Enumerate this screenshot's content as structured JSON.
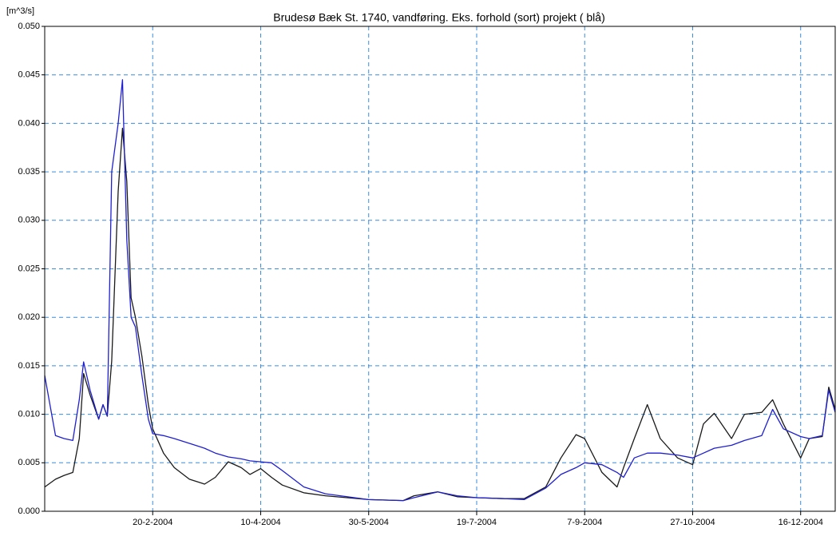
{
  "chart_data": {
    "type": "line",
    "title": "Brudesø Bæk St. 1740, vandføring. Eks. forhold (sort) projekt ( blå)",
    "y_label": "[m^3/s]",
    "x": [
      "1-1-2004",
      "6-1-2004",
      "10-1-2004",
      "14-1-2004",
      "17-1-2004",
      "19-1-2004",
      "22-1-2004",
      "26-1-2004",
      "28-1-2004",
      "30-1-2004",
      "1-2-2004",
      "4-2-2004",
      "6-2-2004",
      "8-2-2004",
      "10-2-2004",
      "12-2-2004",
      "15-2-2004",
      "18-2-2004",
      "20-2-2004",
      "25-2-2004",
      "1-3-2004",
      "8-3-2004",
      "15-3-2004",
      "20-3-2004",
      "26-3-2004",
      "1-4-2004",
      "5-4-2004",
      "10-4-2004",
      "15-4-2004",
      "20-4-2004",
      "30-4-2004",
      "10-5-2004",
      "30-5-2004",
      "15-6-2004",
      "20-6-2004",
      "1-7-2004",
      "10-7-2004",
      "19-7-2004",
      "1-8-2004",
      "10-8-2004",
      "20-8-2004",
      "27-8-2004",
      "3-9-2004",
      "7-9-2004",
      "15-9-2004",
      "22-9-2004",
      "25-9-2004",
      "30-9-2004",
      "6-10-2004",
      "12-10-2004",
      "20-10-2004",
      "27-10-2004",
      "1-11-2004",
      "6-11-2004",
      "14-11-2004",
      "20-11-2004",
      "28-11-2004",
      "3-12-2004",
      "8-12-2004",
      "16-12-2004",
      "20-12-2004",
      "26-12-2004",
      "29-12-2004",
      "1-1-2005"
    ],
    "series": [
      {
        "color": "#1a1a1a",
        "values": [
          0.0025,
          0.0033,
          0.0037,
          0.004,
          0.0075,
          0.0142,
          0.012,
          0.0095,
          0.011,
          0.0098,
          0.0155,
          0.033,
          0.0395,
          0.034,
          0.022,
          0.02,
          0.016,
          0.011,
          0.0085,
          0.006,
          0.0045,
          0.0033,
          0.0028,
          0.0035,
          0.0051,
          0.0045,
          0.0038,
          0.0044,
          0.0035,
          0.0027,
          0.0019,
          0.0016,
          0.0012,
          0.0011,
          0.0016,
          0.002,
          0.0015,
          0.0014,
          0.0013,
          0.0013,
          0.0025,
          0.0055,
          0.0079,
          0.0075,
          0.004,
          0.0025,
          0.0045,
          0.0075,
          0.011,
          0.0075,
          0.0055,
          0.0048,
          0.009,
          0.0101,
          0.0075,
          0.01,
          0.0102,
          0.0115,
          0.009,
          0.0055,
          0.0075,
          0.0077,
          0.0128,
          0.0105
        ]
      },
      {
        "color": "#1f1fd0",
        "values": [
          0.014,
          0.0078,
          0.0075,
          0.0073,
          0.0115,
          0.0154,
          0.0125,
          0.0095,
          0.011,
          0.0098,
          0.035,
          0.04,
          0.0445,
          0.028,
          0.02,
          0.019,
          0.014,
          0.0095,
          0.008,
          0.0078,
          0.0075,
          0.007,
          0.0065,
          0.006,
          0.0056,
          0.0054,
          0.0052,
          0.0051,
          0.005,
          0.0042,
          0.0025,
          0.0018,
          0.0012,
          0.0011,
          0.0014,
          0.002,
          0.0016,
          0.0014,
          0.0013,
          0.0012,
          0.0024,
          0.0038,
          0.0045,
          0.005,
          0.0048,
          0.004,
          0.0035,
          0.0055,
          0.006,
          0.006,
          0.0058,
          0.0055,
          0.006,
          0.0065,
          0.0068,
          0.0073,
          0.0078,
          0.0105,
          0.0085,
          0.0077,
          0.0075,
          0.0078,
          0.0125,
          0.0102
        ]
      }
    ],
    "xlim": [
      "1-1-2004",
      "1-1-2005"
    ],
    "xticks": [
      "20-2-2004",
      "10-4-2004",
      "30-5-2004",
      "19-7-2004",
      "7-9-2004",
      "27-10-2004",
      "16-12-2004"
    ],
    "ylim": [
      0,
      0.05
    ],
    "yticks": [
      {
        "value": 0,
        "label": "0.000"
      },
      {
        "value": 0.005,
        "label": "0.005"
      },
      {
        "value": 0.01,
        "label": "0.010"
      },
      {
        "value": 0.015,
        "label": "0.015"
      },
      {
        "value": 0.02,
        "label": "0.020"
      },
      {
        "value": 0.025,
        "label": "0.025"
      },
      {
        "value": 0.03,
        "label": "0.030"
      },
      {
        "value": 0.035,
        "label": "0.035"
      },
      {
        "value": 0.04,
        "label": "0.040"
      },
      {
        "value": 0.045,
        "label": "0.045"
      },
      {
        "value": 0.05,
        "label": "0.050"
      }
    ],
    "grid": true
  }
}
